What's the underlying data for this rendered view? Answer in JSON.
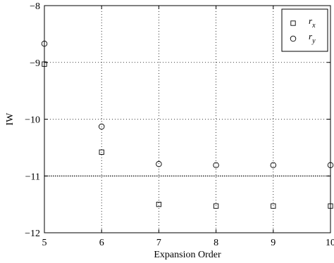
{
  "chart_data": {
    "type": "scatter",
    "title": "",
    "xlabel": "Expansion Order",
    "ylabel": "IW",
    "xlim": [
      5,
      10
    ],
    "ylim": [
      -12,
      -8
    ],
    "xticks": [
      5,
      6,
      7,
      8,
      9,
      10
    ],
    "yticks": [
      -12,
      -11,
      -10,
      -9,
      -8
    ],
    "grid": true,
    "reference_line_y": -11,
    "legend_position": "top-right",
    "series": [
      {
        "name": "r_x",
        "label_base": "r",
        "label_sub": "x",
        "marker": "square",
        "x": [
          5,
          6,
          7,
          8,
          9,
          10
        ],
        "y": [
          -9.03,
          -10.58,
          -11.5,
          -11.53,
          -11.53,
          -11.53
        ]
      },
      {
        "name": "r_y",
        "label_base": "r",
        "label_sub": "y",
        "marker": "circle",
        "x": [
          5,
          6,
          7,
          8,
          9,
          10
        ],
        "y": [
          -8.67,
          -10.13,
          -10.79,
          -10.81,
          -10.81,
          -10.81
        ]
      }
    ]
  }
}
